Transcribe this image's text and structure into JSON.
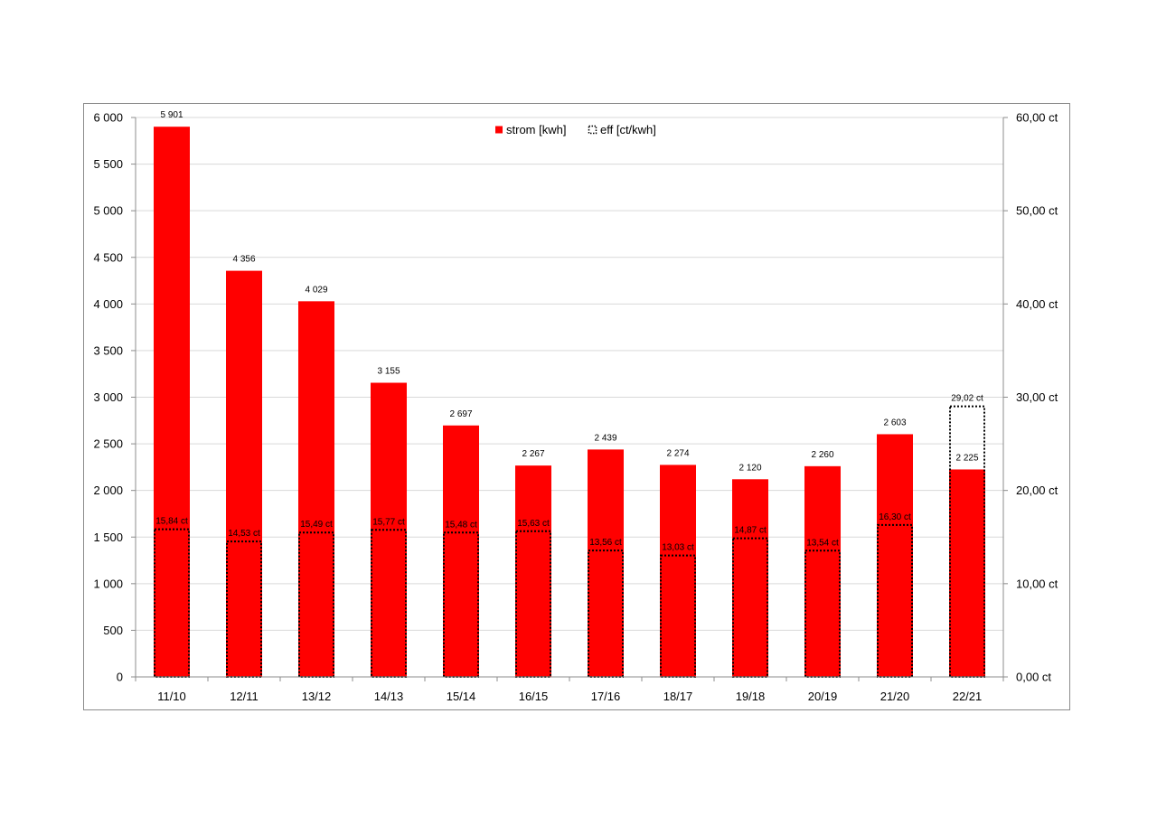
{
  "chart_data": {
    "type": "bar",
    "title": "",
    "xlabel": "",
    "ylabel": "",
    "y2label": "",
    "categories": [
      "11/10",
      "12/11",
      "13/12",
      "14/13",
      "15/14",
      "16/15",
      "17/16",
      "18/17",
      "19/18",
      "20/19",
      "21/20",
      "22/21"
    ],
    "series": [
      {
        "name": "strom [kwh]",
        "axis": "left",
        "color": "#ff0000",
        "values": [
          5901,
          4356,
          4029,
          3155,
          2697,
          2267,
          2439,
          2274,
          2120,
          2260,
          2603,
          2225
        ],
        "labels": [
          "5 901",
          "4 356",
          "4 029",
          "3 155",
          "2 697",
          "2 267",
          "2 439",
          "2 274",
          "2 120",
          "2 260",
          "2 603",
          "2 225"
        ]
      },
      {
        "name": "eff [ct/kwh]",
        "axis": "right",
        "style": "dotted-outline",
        "color": "#000000",
        "values": [
          15.84,
          14.53,
          15.49,
          15.77,
          15.48,
          15.63,
          13.56,
          13.03,
          14.87,
          13.54,
          16.3,
          29.02
        ],
        "labels": [
          "15,84 ct",
          "14,53 ct",
          "15,49 ct",
          "15,77 ct",
          "15,48 ct",
          "15,63 ct",
          "13,56 ct",
          "13,03 ct",
          "14,87 ct",
          "13,54 ct",
          "16,30 ct",
          "29,02 ct"
        ]
      }
    ],
    "ylim": [
      0,
      6000
    ],
    "y2lim": [
      0,
      60
    ],
    "yticks": [
      "0",
      "500",
      "1 000",
      "1 500",
      "2 000",
      "2 500",
      "3 000",
      "3 500",
      "4 000",
      "4 500",
      "5 000",
      "5 500",
      "6 000"
    ],
    "y2ticks": [
      "0,00 ct",
      "10,00 ct",
      "20,00 ct",
      "30,00 ct",
      "40,00 ct",
      "50,00 ct",
      "60,00 ct"
    ],
    "grid": true,
    "legend": "top-center"
  }
}
